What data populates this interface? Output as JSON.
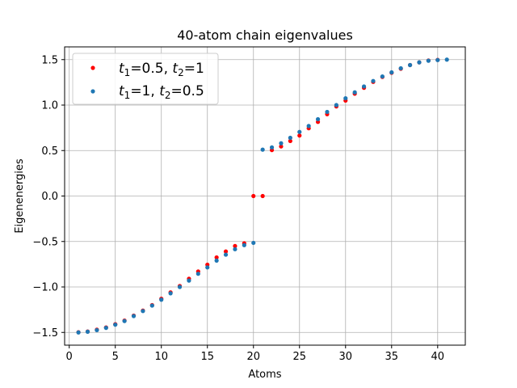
{
  "chart_data": {
    "type": "scatter",
    "title": "40-atom chain eigenvalues",
    "xlabel": "Atoms",
    "ylabel": "Eigenenergies",
    "xlim": [
      -0.5,
      43.0
    ],
    "ylim": [
      -1.64,
      1.64
    ],
    "xticks": [
      0,
      5,
      10,
      15,
      20,
      25,
      30,
      35,
      40
    ],
    "yticks": [
      -1.5,
      -1.0,
      -0.5,
      0.0,
      0.5,
      1.0,
      1.5
    ],
    "xtick_labels": [
      "0",
      "5",
      "10",
      "15",
      "20",
      "25",
      "30",
      "35",
      "40"
    ],
    "ytick_labels": [
      "−1.5",
      "−1.0",
      "−0.5",
      "0.0",
      "0.5",
      "1.0",
      "1.5"
    ],
    "grid": true,
    "legend_position": "top-left",
    "series": [
      {
        "name": "t1=0.5, t2=1",
        "legend_parts": {
          "v1": "=0.5, ",
          "v2": "=1"
        },
        "color": "#ff0000",
        "x": [
          1,
          2,
          3,
          4,
          5,
          6,
          7,
          8,
          9,
          10,
          11,
          12,
          13,
          14,
          15,
          16,
          17,
          18,
          19,
          20,
          21,
          22,
          23,
          24,
          25,
          26,
          27,
          28,
          29,
          30,
          31,
          32,
          33,
          34,
          35,
          36,
          37,
          38,
          39,
          40,
          41
        ],
        "y": [
          -1.498,
          -1.49,
          -1.47,
          -1.445,
          -1.41,
          -1.37,
          -1.315,
          -1.26,
          -1.2,
          -1.13,
          -1.06,
          -0.99,
          -0.91,
          -0.83,
          -0.755,
          -0.675,
          -0.61,
          -0.55,
          -0.52,
          0.0,
          0.0,
          0.505,
          0.545,
          0.605,
          0.665,
          0.745,
          0.815,
          0.9,
          0.985,
          1.05,
          1.125,
          1.19,
          1.255,
          1.31,
          1.355,
          1.4,
          1.44,
          1.47,
          1.49,
          1.497,
          null
        ]
      },
      {
        "name": "t1=1, t2=0.5",
        "legend_parts": {
          "v1": "=1, ",
          "v2": "=0.5"
        },
        "color": "#1f77b4",
        "x": [
          1,
          2,
          3,
          4,
          5,
          6,
          7,
          8,
          9,
          10,
          11,
          12,
          13,
          14,
          15,
          16,
          17,
          18,
          19,
          20,
          21,
          22,
          23,
          24,
          25,
          26,
          27,
          28,
          29,
          30,
          31,
          32,
          33,
          34,
          35,
          36,
          37,
          38,
          39,
          40,
          41
        ],
        "y": [
          -1.5,
          -1.492,
          -1.475,
          -1.45,
          -1.415,
          -1.375,
          -1.32,
          -1.265,
          -1.205,
          -1.14,
          -1.07,
          -1.0,
          -0.93,
          -0.855,
          -0.785,
          -0.71,
          -0.645,
          -0.585,
          -0.54,
          -0.515,
          0.51,
          0.535,
          0.58,
          0.64,
          0.705,
          0.77,
          0.845,
          0.925,
          1.0,
          1.075,
          1.14,
          1.205,
          1.265,
          1.315,
          1.36,
          1.405,
          1.44,
          1.47,
          1.488,
          1.495,
          1.5
        ]
      }
    ]
  }
}
